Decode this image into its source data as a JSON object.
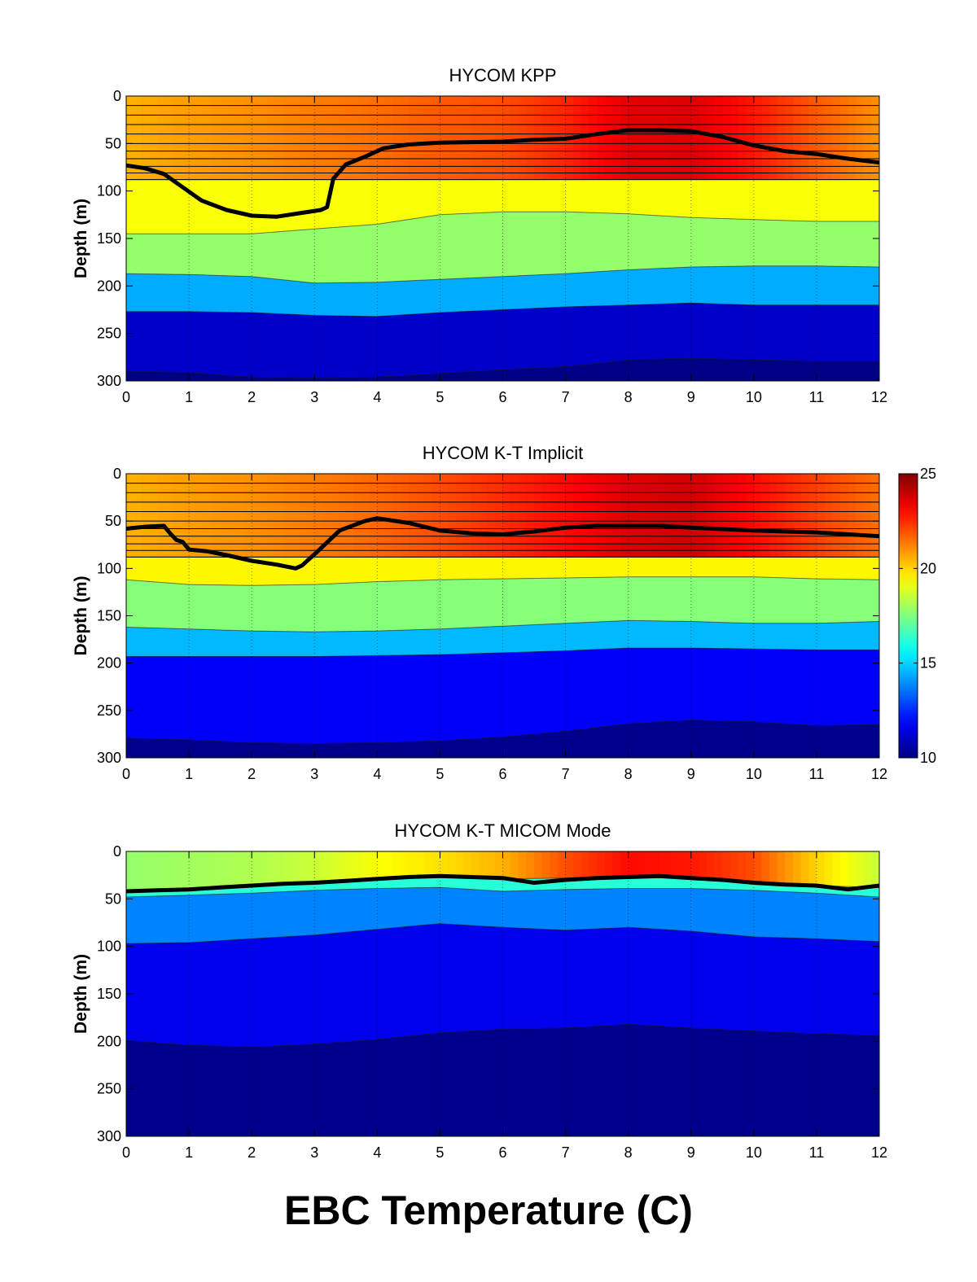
{
  "figure_title": "EBC Temperature (C)",
  "colorbar": {
    "min": 10,
    "max": 25,
    "ticks": [
      "10",
      "15",
      "20",
      "25"
    ],
    "colormap": "jet"
  },
  "chart_data": [
    {
      "type": "heatmap",
      "title": "HYCOM KPP",
      "ylabel": "Depth (m)",
      "xlabel": "",
      "xlim": [
        0,
        12
      ],
      "ylim": [
        300,
        0
      ],
      "y_reversed": true,
      "xticks": [
        "0",
        "1",
        "2",
        "3",
        "4",
        "5",
        "6",
        "7",
        "8",
        "9",
        "10",
        "11",
        "12"
      ],
      "yticks": [
        "0",
        "50",
        "100",
        "150",
        "200",
        "250",
        "300"
      ],
      "grid": "vertical dotted",
      "x": [
        0,
        1,
        2,
        3,
        4,
        5,
        6,
        7,
        8,
        9,
        10,
        11,
        12
      ],
      "surface_temperature": [
        20.5,
        20.8,
        21.0,
        21.3,
        21.5,
        21.8,
        22.0,
        22.6,
        23.5,
        23.6,
        22.8,
        21.8,
        21.0
      ],
      "layer_interfaces": [
        {
          "name": "20C",
          "depth": [
            88,
            88,
            88,
            88,
            88,
            88,
            88,
            88,
            88,
            88,
            88,
            88,
            88
          ]
        },
        {
          "name": "18C",
          "depth": [
            145,
            145,
            145,
            140,
            135,
            125,
            122,
            122,
            124,
            128,
            130,
            132,
            132
          ]
        },
        {
          "name": "15C",
          "depth": [
            187,
            188,
            190,
            197,
            196,
            193,
            190,
            187,
            183,
            180,
            179,
            179,
            180
          ]
        },
        {
          "name": "12C",
          "depth": [
            227,
            227,
            228,
            231,
            232,
            228,
            225,
            222,
            220,
            218,
            220,
            220,
            220
          ]
        },
        {
          "name": "10C",
          "depth": [
            290,
            291,
            296,
            297,
            296,
            292,
            288,
            285,
            278,
            276,
            278,
            279,
            279
          ]
        }
      ],
      "layer_temperatures": [
        19.3,
        17.8,
        14.4,
        11.1,
        10.1
      ],
      "upper_layer_lines_depth": [
        0,
        10,
        20,
        30,
        40,
        50,
        58,
        66,
        74,
        81,
        88
      ],
      "mixed_layer_depth": {
        "x": [
          0,
          0.3,
          0.6,
          0.9,
          1.2,
          1.6,
          2.0,
          2.4,
          2.8,
          3.1,
          3.2,
          3.3,
          3.5,
          3.8,
          4.1,
          4.5,
          5,
          6,
          6.5,
          7,
          7.5,
          8,
          8.5,
          9,
          9.5,
          10,
          10.5,
          11,
          11.5,
          12
        ],
        "depth": [
          73,
          76,
          82,
          96,
          110,
          120,
          126,
          127,
          123,
          120,
          117,
          87,
          72,
          64,
          55,
          51,
          49,
          48,
          46,
          45,
          40,
          36,
          36,
          37,
          43,
          52,
          58,
          61,
          66,
          70
        ]
      }
    },
    {
      "type": "heatmap",
      "title": "HYCOM K-T Implicit",
      "ylabel": "Depth (m)",
      "xlabel": "",
      "xlim": [
        0,
        12
      ],
      "ylim": [
        300,
        0
      ],
      "y_reversed": true,
      "xticks": [
        "0",
        "1",
        "2",
        "3",
        "4",
        "5",
        "6",
        "7",
        "8",
        "9",
        "10",
        "11",
        "12"
      ],
      "yticks": [
        "0",
        "50",
        "100",
        "150",
        "200",
        "250",
        "300"
      ],
      "grid": "vertical dotted",
      "x": [
        0,
        1,
        2,
        3,
        4,
        5,
        6,
        7,
        8,
        9,
        10,
        11,
        12
      ],
      "surface_temperature": [
        20.5,
        20.8,
        21.0,
        21.3,
        21.6,
        22.0,
        22.5,
        23.0,
        23.6,
        23.8,
        23.0,
        22.2,
        21.5
      ],
      "layer_interfaces": [
        {
          "name": "20C",
          "depth": [
            88,
            88,
            88,
            88,
            88,
            88,
            88,
            88,
            88,
            88,
            88,
            88,
            88
          ]
        },
        {
          "name": "19C",
          "depth": [
            112,
            117,
            118,
            117,
            114,
            112,
            111,
            110,
            109,
            109,
            109,
            111,
            112
          ]
        },
        {
          "name": "17C",
          "depth": [
            162,
            164,
            166,
            167,
            166,
            164,
            161,
            158,
            155,
            156,
            158,
            158,
            156
          ]
        },
        {
          "name": "14C",
          "depth": [
            193,
            193,
            193,
            193,
            192,
            191,
            189,
            187,
            184,
            184,
            185,
            186,
            186
          ]
        },
        {
          "name": "11C",
          "depth": [
            279,
            281,
            284,
            285,
            284,
            282,
            278,
            272,
            264,
            260,
            262,
            266,
            265
          ]
        }
      ],
      "layer_temperatures": [
        19.5,
        17.6,
        14.6,
        11.8,
        10.2
      ],
      "upper_layer_lines_depth": [
        0,
        10,
        20,
        30,
        40,
        50,
        58,
        66,
        74,
        81,
        88
      ],
      "mixed_layer_depth": {
        "x": [
          0,
          0.3,
          0.6,
          0.7,
          0.8,
          0.9,
          1.0,
          1.3,
          1.6,
          2.0,
          2.4,
          2.7,
          2.8,
          3.0,
          3.4,
          3.8,
          4.0,
          4.5,
          5.0,
          5.5,
          6.0,
          6.5,
          7.0,
          7.5,
          8.0,
          8.5,
          9.0,
          10.0,
          11.0,
          12.0
        ],
        "depth": [
          58,
          56,
          55,
          63,
          70,
          72,
          80,
          82,
          86,
          92,
          96,
          100,
          97,
          85,
          60,
          50,
          47,
          52,
          60,
          63,
          64,
          61,
          57,
          55,
          55,
          55,
          57,
          60,
          62,
          66
        ]
      }
    },
    {
      "type": "heatmap",
      "title": "HYCOM K-T MICOM Mode",
      "ylabel": "Depth (m)",
      "xlabel": "",
      "xlim": [
        0,
        12
      ],
      "ylim": [
        300,
        0
      ],
      "y_reversed": true,
      "xticks": [
        "0",
        "1",
        "2",
        "3",
        "4",
        "5",
        "6",
        "7",
        "8",
        "9",
        "10",
        "11",
        "12"
      ],
      "yticks": [
        "0",
        "50",
        "100",
        "150",
        "200",
        "250",
        "300"
      ],
      "grid": "vertical dotted",
      "x": [
        0,
        1,
        2,
        3,
        4,
        5,
        6,
        7,
        8,
        9,
        10,
        11,
        12
      ],
      "surface_temperature": [
        17.8,
        18.0,
        18.2,
        18.6,
        19.3,
        19.8,
        20.5,
        22.0,
        23.0,
        22.8,
        22.0,
        20.0,
        18.5
      ],
      "layer_interfaces": [
        {
          "name": "mixed",
          "depth": [
            42,
            40,
            37,
            33,
            29,
            26,
            29,
            28,
            26,
            28,
            33,
            36,
            38
          ]
        },
        {
          "name": "16C",
          "depth": [
            48,
            46,
            44,
            41,
            39,
            38,
            42,
            40,
            39,
            39,
            41,
            44,
            48
          ]
        },
        {
          "name": "14C",
          "depth": [
            97,
            96,
            92,
            88,
            82,
            76,
            80,
            83,
            80,
            84,
            90,
            92,
            95
          ]
        },
        {
          "name": "11C",
          "depth": [
            199,
            204,
            206,
            203,
            198,
            191,
            187,
            186,
            182,
            186,
            189,
            192,
            194
          ]
        }
      ],
      "layer_temperatures": [
        16.2,
        13.8,
        11.6,
        10.2
      ],
      "upper_layer_lines_depth": [],
      "mixed_layer_depth": {
        "x": [
          0,
          0.5,
          1,
          1.5,
          2,
          2.5,
          3,
          3.5,
          4,
          4.5,
          5,
          5.5,
          6,
          6.5,
          7,
          7.5,
          8,
          8.5,
          9,
          9.5,
          10,
          10.5,
          11,
          11.5,
          12
        ],
        "depth": [
          42,
          41,
          40,
          38,
          36,
          34,
          33,
          31,
          29,
          27,
          26,
          27,
          28,
          33,
          30,
          28,
          27,
          26,
          28,
          30,
          33,
          35,
          36,
          40,
          36
        ]
      }
    }
  ]
}
